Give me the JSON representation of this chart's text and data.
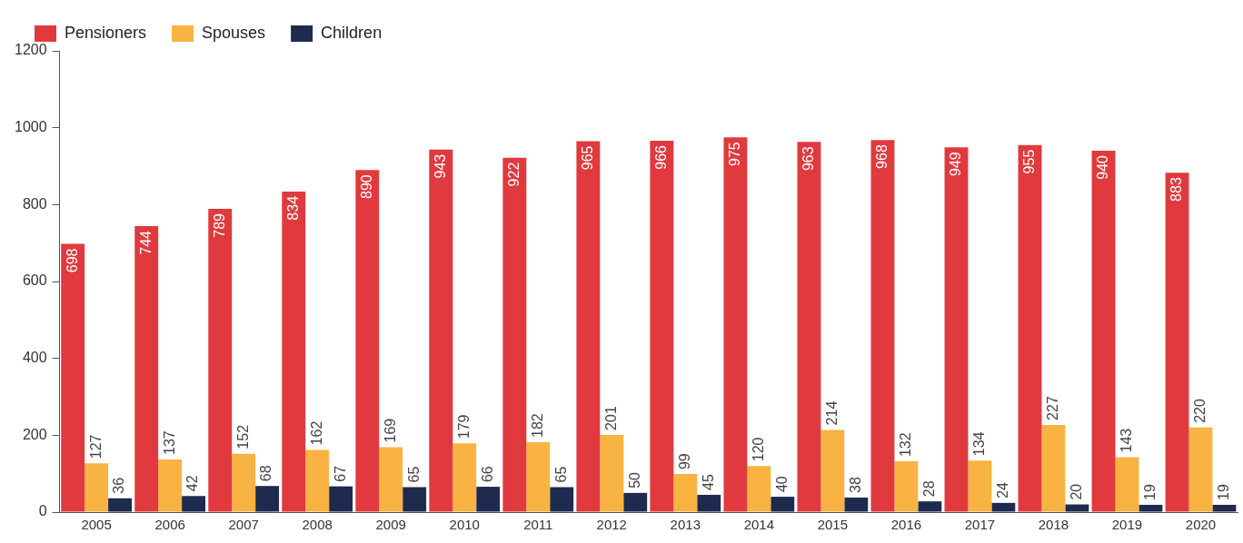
{
  "chart_data": {
    "type": "bar",
    "categories": [
      "2005",
      "2006",
      "2007",
      "2008",
      "2009",
      "2010",
      "2011",
      "2012",
      "2013",
      "2014",
      "2015",
      "2016",
      "2017",
      "2018",
      "2019",
      "2020"
    ],
    "series": [
      {
        "name": "Pensioners",
        "color": "#e03a3e",
        "values": [
          698,
          744,
          789,
          834,
          890,
          943,
          922,
          965,
          966,
          975,
          963,
          968,
          949,
          955,
          940,
          883
        ]
      },
      {
        "name": "Spouses",
        "color": "#f9b343",
        "values": [
          127,
          137,
          152,
          162,
          169,
          179,
          182,
          201,
          99,
          120,
          214,
          132,
          134,
          227,
          143,
          220
        ]
      },
      {
        "name": "Children",
        "color": "#1f2a4f",
        "values": [
          36,
          42,
          68,
          67,
          65,
          66,
          65,
          50,
          45,
          40,
          38,
          28,
          24,
          20,
          19,
          19
        ]
      }
    ],
    "ylim": [
      0,
      1200
    ],
    "yticks": [
      0,
      200,
      400,
      600,
      800,
      1000,
      1200
    ],
    "grid": false,
    "legend": "top left",
    "data_labels": true
  }
}
